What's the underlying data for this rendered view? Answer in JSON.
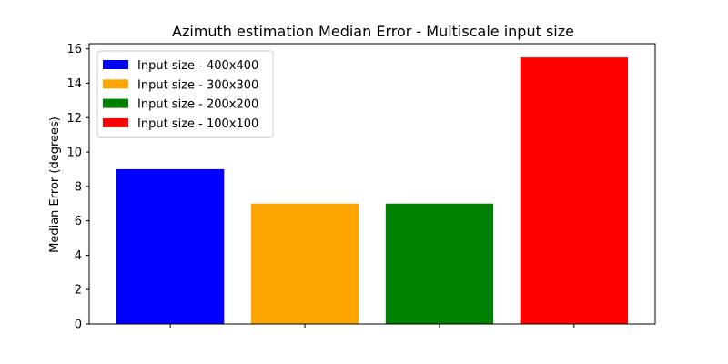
{
  "chart_data": {
    "type": "bar",
    "title": "Azimuth estimation Median Error - Multiscale input size",
    "xlabel": "",
    "ylabel": "Median Error (degrees)",
    "ylim": [
      0,
      16.3
    ],
    "yticks": [
      0,
      2,
      4,
      6,
      8,
      10,
      12,
      14,
      16
    ],
    "categories": [
      "",
      "",
      "",
      ""
    ],
    "series": [
      {
        "name": "Input size - 400x400",
        "values": [
          9.0,
          null,
          null,
          null
        ],
        "color": "#0000ff"
      },
      {
        "name": "Input size - 300x300",
        "values": [
          null,
          7.0,
          null,
          null
        ],
        "color": "#ffa500"
      },
      {
        "name": "Input size - 200x200",
        "values": [
          null,
          null,
          7.0,
          null
        ],
        "color": "#008000"
      },
      {
        "name": "Input size - 100x100",
        "values": [
          null,
          null,
          null,
          15.5
        ],
        "color": "#ff0000"
      }
    ],
    "legend_position": "top-left",
    "grid": false
  }
}
